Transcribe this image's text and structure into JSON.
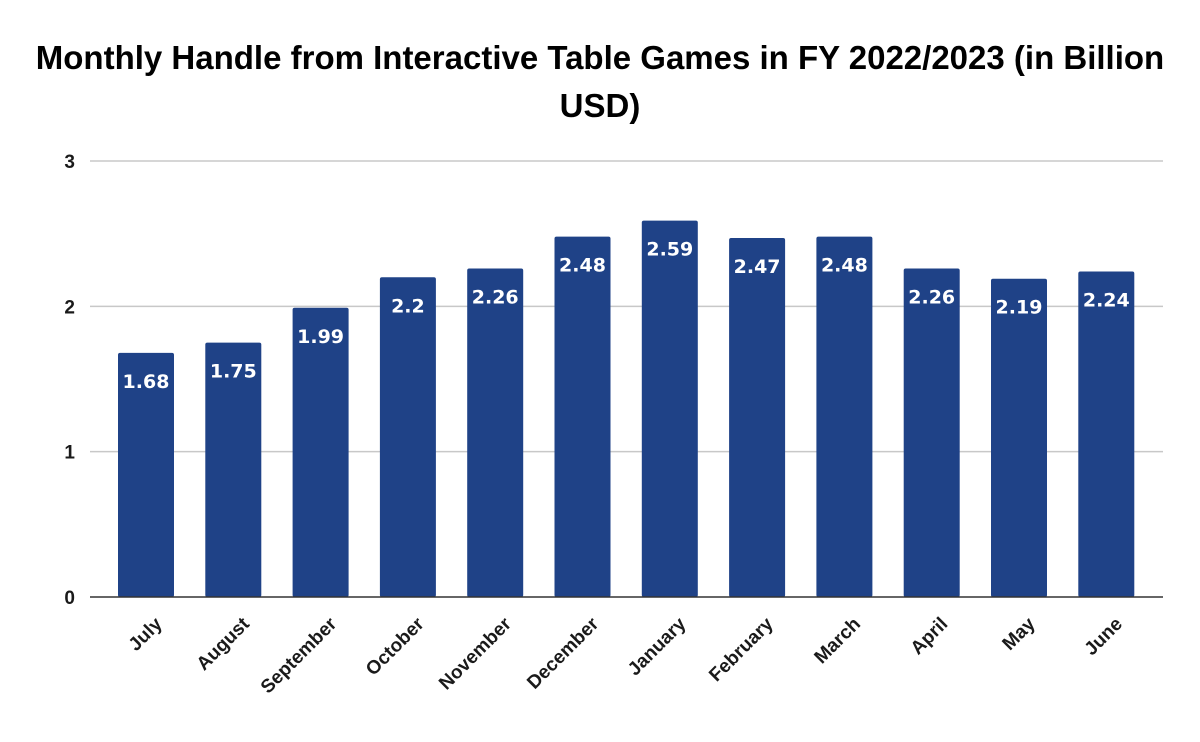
{
  "chart_data": {
    "type": "bar",
    "title": "Monthly Handle from Interactive Table Games in FY 2022/2023 (in Billion USD)",
    "xlabel": "",
    "ylabel": "",
    "categories": [
      "July",
      "August",
      "September",
      "October",
      "November",
      "December",
      "January",
      "February",
      "March",
      "April",
      "May",
      "June"
    ],
    "values": [
      1.68,
      1.75,
      1.99,
      2.2,
      2.26,
      2.48,
      2.59,
      2.47,
      2.48,
      2.26,
      2.19,
      2.24
    ],
    "data_labels": [
      "1.68",
      "1.75",
      "1.99",
      "2.2",
      "2.26",
      "2.48",
      "2.59",
      "2.47",
      "2.48",
      "2.26",
      "2.19",
      "2.24"
    ],
    "y_ticks": [
      0,
      1,
      2,
      3
    ],
    "y_tick_labels": [
      "0",
      "1",
      "2",
      "3"
    ],
    "ylim": [
      0,
      3
    ],
    "grid": true,
    "legend": "none",
    "bar_color": "#1f4287"
  }
}
